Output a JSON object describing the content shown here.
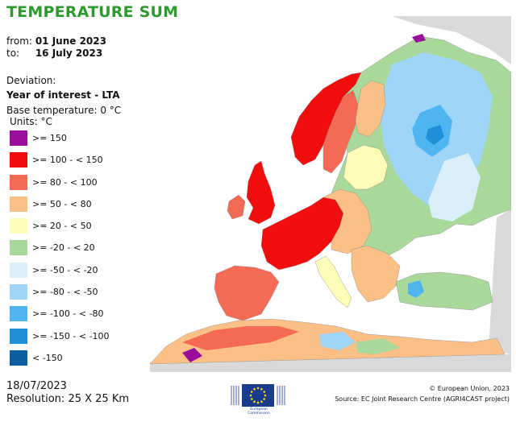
{
  "title": "TEMPERATURE SUM",
  "period": {
    "from_label": "from:",
    "from_value": "01 June 2023",
    "to_label": "to:",
    "to_value": "16 July 2023"
  },
  "deviation_label": "Deviation:",
  "deviation_value": "Year of interest - LTA",
  "base_temperature": "Base temperature: 0 °C",
  "units": "Units: °C",
  "legend": [
    {
      "label": ">= 150",
      "color": "#9b0e9b"
    },
    {
      "label": ">= 100 - < 150",
      "color": "#f20d0d"
    },
    {
      "label": ">= 80 - < 100",
      "color": "#f56a55"
    },
    {
      "label": ">= 50 - < 80",
      "color": "#fcbf86"
    },
    {
      "label": ">= 20 - < 50",
      "color": "#fdfdb8"
    },
    {
      "label": ">= -20 - < 20",
      "color": "#a8d89a"
    },
    {
      "label": ">= -50 - < -20",
      "color": "#dbeffb"
    },
    {
      "label": ">= -80 - < -50",
      "color": "#9fd5f6"
    },
    {
      "label": ">= -100 - < -80",
      "color": "#4fb5f0"
    },
    {
      "label": ">= -150 - < -100",
      "color": "#1e8fd8"
    },
    {
      "label": "< -150",
      "color": "#0d5ea1"
    }
  ],
  "colors": {
    "title": "#2e9a2e",
    "sea": "#ffffff",
    "non_data_land": "#d9d9d9",
    "border": "#8a8a8a"
  },
  "date": "18/07/2023",
  "resolution": "Resolution: 25 X 25 Km",
  "logo": {
    "icon": "eu-flag-icon",
    "caption": "European Commission"
  },
  "copyright": "© European Union, 2023",
  "source": "Source: EC Joint Research Centre (AGRI4CAST project)"
}
